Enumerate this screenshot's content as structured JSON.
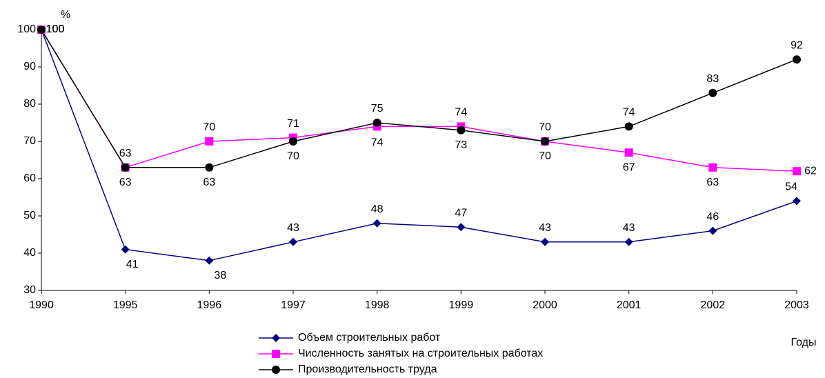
{
  "chart_data": {
    "type": "line",
    "y_label": "%",
    "x_label": "Годы",
    "categories": [
      "1990",
      "1995",
      "1996",
      "1997",
      "1998",
      "1999",
      "2000",
      "2001",
      "2002",
      "2003"
    ],
    "series": [
      {
        "name": "Объем строительных работ",
        "color": "#000080",
        "marker": "diamond",
        "values": [
          100,
          41,
          38,
          43,
          48,
          47,
          43,
          43,
          46,
          54
        ]
      },
      {
        "name": "Численность занятых на строительных работах",
        "color": "#ff00ff",
        "marker": "square",
        "values": [
          100,
          63,
          70,
          71,
          74,
          74,
          70,
          67,
          63,
          62
        ]
      },
      {
        "name": "Производительность труда",
        "color": "#000000",
        "marker": "circle",
        "values": [
          100,
          63,
          63,
          70,
          75,
          73,
          70,
          74,
          83,
          92
        ]
      }
    ],
    "ylim": [
      30,
      100
    ],
    "yticks": [
      30,
      40,
      50,
      60,
      70,
      80,
      90,
      100
    ],
    "grid": false,
    "legend": "bottom"
  }
}
